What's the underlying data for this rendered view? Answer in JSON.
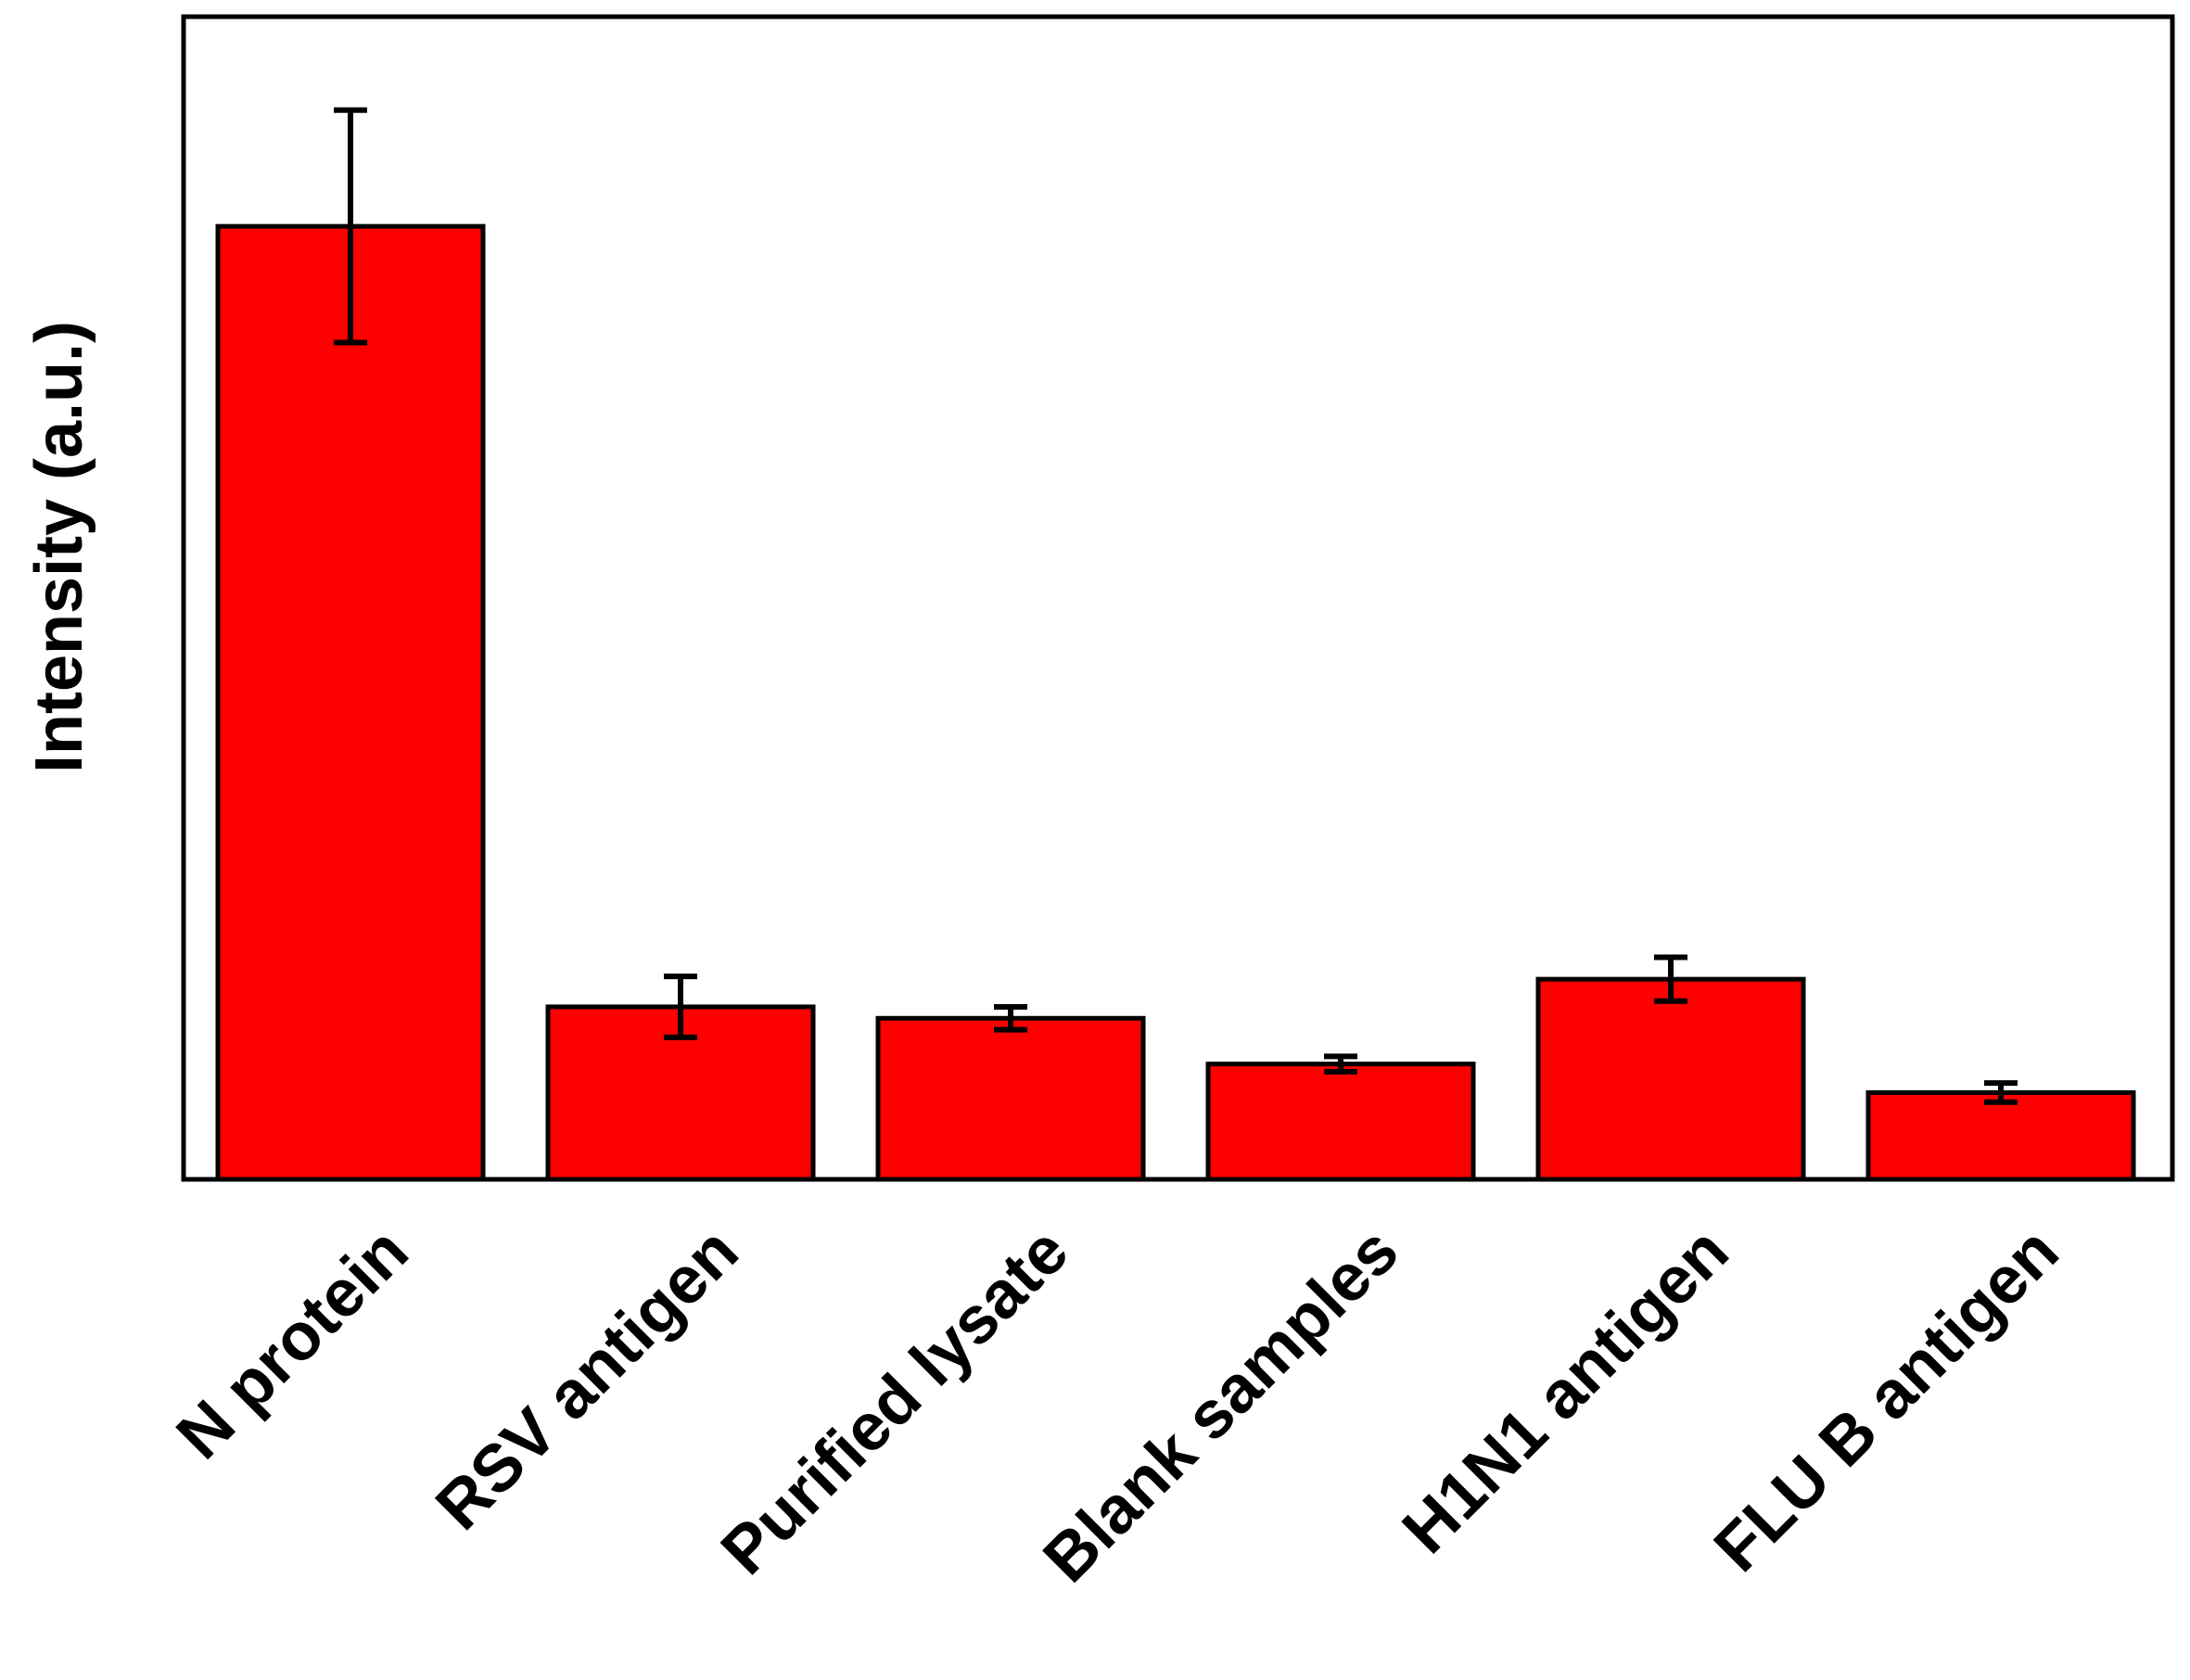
{
  "chart_data": {
    "type": "bar",
    "title": "",
    "xlabel": "",
    "ylabel": "Intensity (a.u.)",
    "categories": [
      "N protein",
      "RSV antigen",
      "Purified lysate",
      "Blank samples",
      "H1N1 antigen",
      "FLU B antigen"
    ],
    "values": [
      100,
      18.1,
      16.9,
      12.1,
      21.0,
      9.1
    ],
    "errors": [
      12.2,
      3.2,
      1.2,
      0.8,
      2.3,
      1.0
    ],
    "ylim": [
      0,
      122
    ],
    "y_ticks_shown": false,
    "grid": false,
    "legend": "none",
    "bar_color": "#ff0000",
    "edge_color": "#000000"
  }
}
